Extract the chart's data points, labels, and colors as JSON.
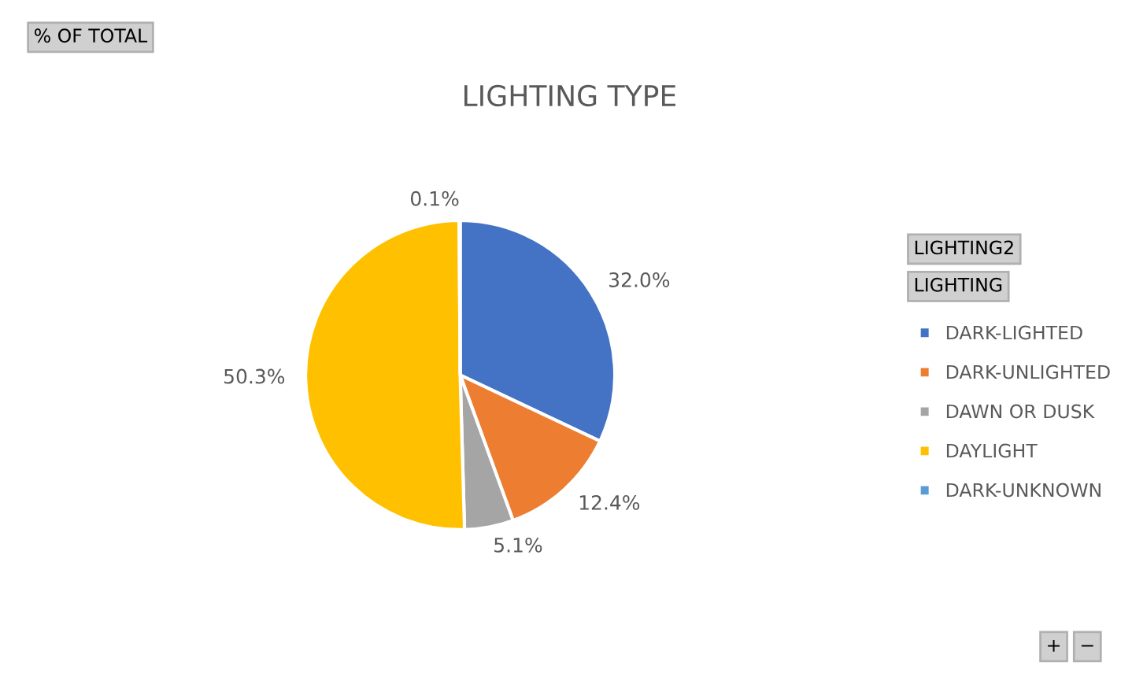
{
  "chart_data": {
    "type": "pie",
    "title": "LIGHTING TYPE",
    "categories": [
      "DARK-LIGHTED",
      "DARK-UNLIGHTED",
      "DAWN OR DUSK",
      "DAYLIGHT",
      "DARK-UNKNOWN"
    ],
    "values": [
      32.0,
      12.4,
      5.1,
      50.3,
      0.1
    ],
    "colors": [
      "#4472c4",
      "#ed7d31",
      "#a5a5a5",
      "#ffc000",
      "#5b9bd5"
    ],
    "value_labels": [
      "32.0%",
      "12.4%",
      "5.1%",
      "50.3%",
      "0.1%"
    ],
    "legend": "right",
    "annotations": [
      "% OF TOTAL",
      "LIGHTING2",
      "LIGHTING",
      "+",
      "−"
    ]
  }
}
